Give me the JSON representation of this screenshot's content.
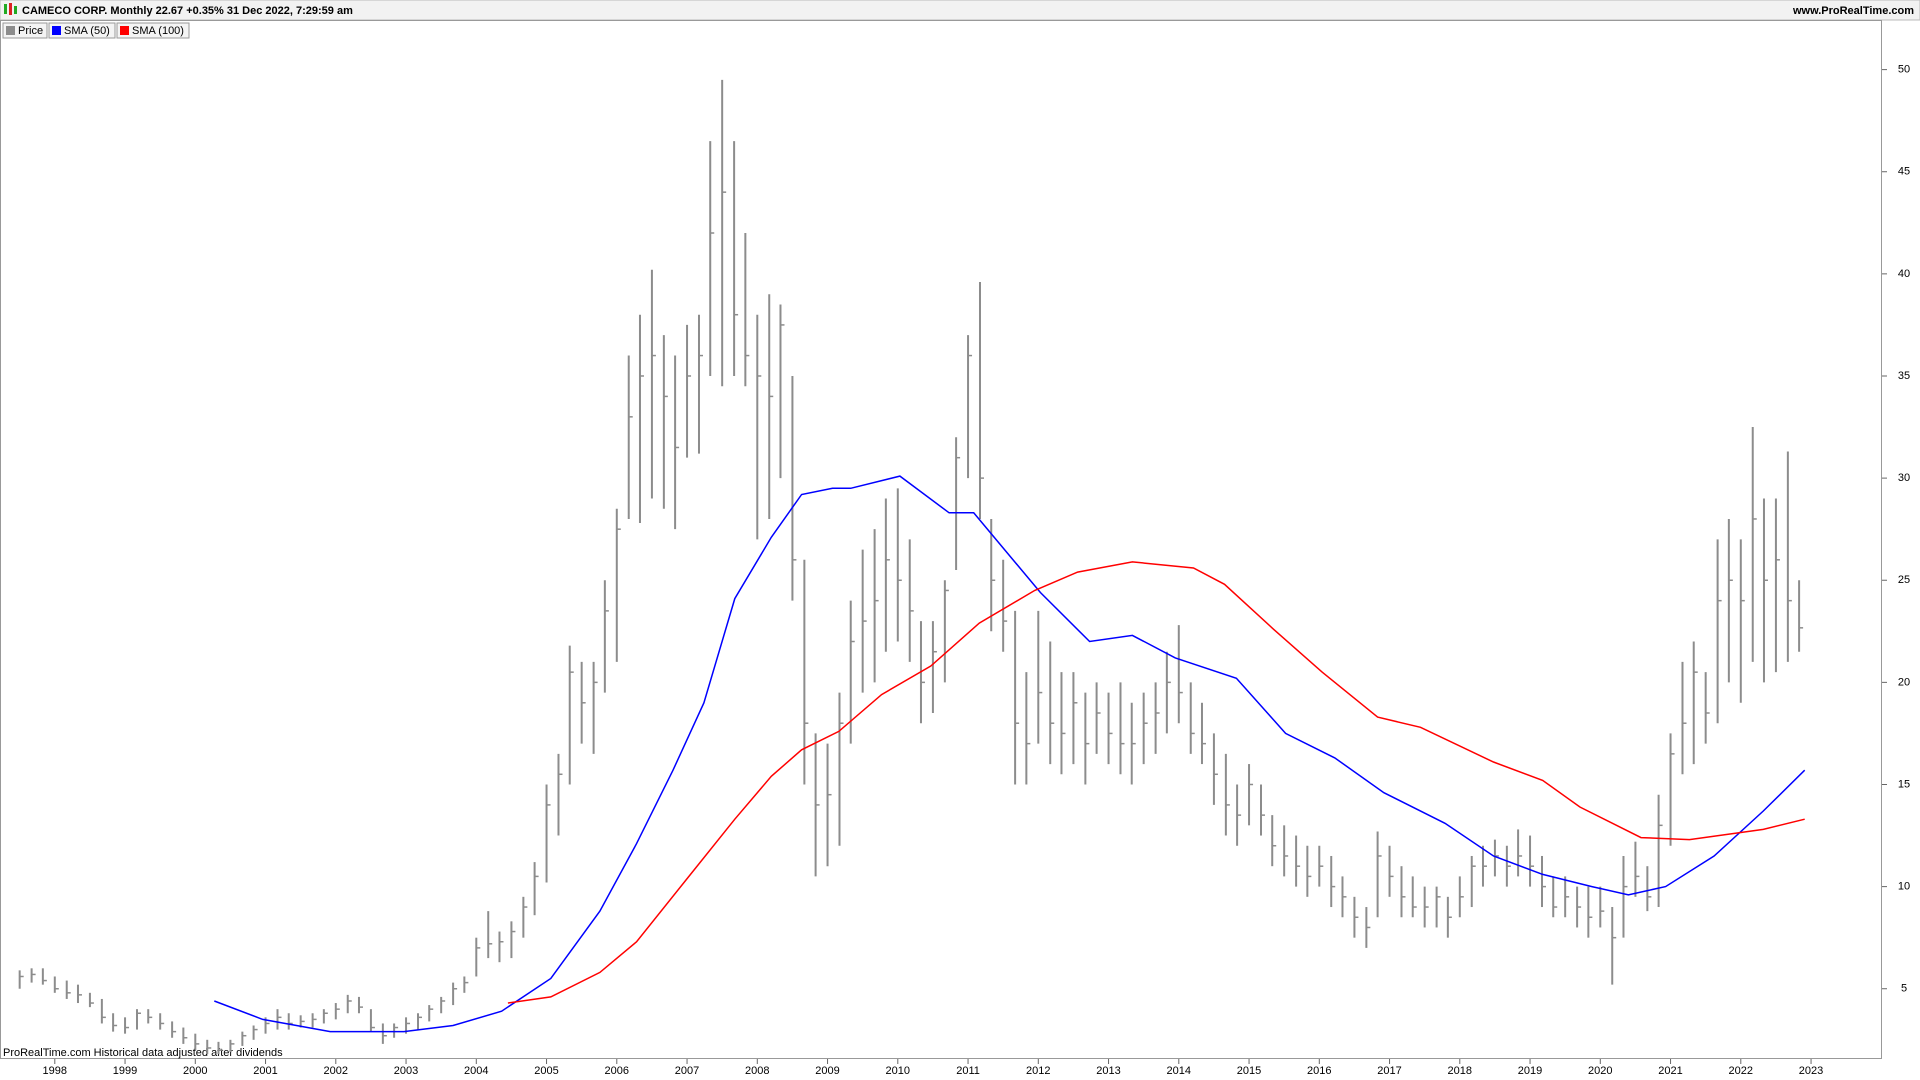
{
  "chart_data": {
    "type": "ohlc",
    "title": "CAMECO CORP. Monthly 22.67 +0.35% 31 Dec 2022, 7:29:59 am",
    "source": "www.ProRealTime.com",
    "footnote": "ProRealTime.com Historical data adjusted after dividends",
    "xlim": [
      1997.22,
      2024.01
    ],
    "xticks": [
      {
        "value": 1998,
        "label": "1998"
      },
      {
        "value": 1999,
        "label": "1999"
      },
      {
        "value": 2000,
        "label": "2000"
      },
      {
        "value": 2001,
        "label": "2001"
      },
      {
        "value": 2002,
        "label": "2002"
      },
      {
        "value": 2003,
        "label": "2003"
      },
      {
        "value": 2004,
        "label": "2004"
      },
      {
        "value": 2005,
        "label": "2005"
      },
      {
        "value": 2006,
        "label": "2006"
      },
      {
        "value": 2007,
        "label": "2007"
      },
      {
        "value": 2008,
        "label": "2008"
      },
      {
        "value": 2009,
        "label": "2009"
      },
      {
        "value": 2010,
        "label": "2010"
      },
      {
        "value": 2011,
        "label": "2011"
      },
      {
        "value": 2012,
        "label": "2012"
      },
      {
        "value": 2013,
        "label": "2013"
      },
      {
        "value": 2014,
        "label": "2014"
      },
      {
        "value": 2015,
        "label": "2015"
      },
      {
        "value": 2016,
        "label": "2016"
      },
      {
        "value": 2017,
        "label": "2017"
      },
      {
        "value": 2018,
        "label": "2018"
      },
      {
        "value": 2019,
        "label": "2019"
      },
      {
        "value": 2020,
        "label": "2020"
      },
      {
        "value": 2021,
        "label": "2021"
      },
      {
        "value": 2022,
        "label": "2022"
      },
      {
        "value": 2023,
        "label": "2023"
      }
    ],
    "ylim": [
      1.56,
      52.38
    ],
    "yticks": [
      5,
      10,
      15,
      20,
      25,
      30,
      35,
      40,
      45,
      50
    ],
    "series": [
      {
        "name": "Price",
        "color": "#8c8c8c",
        "x": [
          1997.5,
          1997.67,
          1997.83,
          1998.0,
          1998.17,
          1998.33,
          1998.5,
          1998.67,
          1998.83,
          1999.0,
          1999.17,
          1999.33,
          1999.5,
          1999.67,
          1999.83,
          2000.0,
          2000.17,
          2000.33,
          2000.5,
          2000.67,
          2000.83,
          2001.0,
          2001.17,
          2001.33,
          2001.5,
          2001.67,
          2001.83,
          2002.0,
          2002.17,
          2002.33,
          2002.5,
          2002.67,
          2002.83,
          2003.0,
          2003.17,
          2003.33,
          2003.5,
          2003.67,
          2003.83,
          2004.0,
          2004.17,
          2004.33,
          2004.5,
          2004.67,
          2004.83,
          2005.0,
          2005.17,
          2005.33,
          2005.5,
          2005.67,
          2005.83,
          2006.0,
          2006.17,
          2006.33,
          2006.5,
          2006.67,
          2006.83,
          2007.0,
          2007.17,
          2007.33,
          2007.5,
          2007.67,
          2007.83,
          2008.0,
          2008.17,
          2008.33,
          2008.5,
          2008.67,
          2008.83,
          2009.0,
          2009.17,
          2009.33,
          2009.5,
          2009.67,
          2009.83,
          2010.0,
          2010.17,
          2010.33,
          2010.5,
          2010.67,
          2010.83,
          2011.0,
          2011.17,
          2011.33,
          2011.5,
          2011.67,
          2011.83,
          2012.0,
          2012.17,
          2012.33,
          2012.5,
          2012.67,
          2012.83,
          2013.0,
          2013.17,
          2013.33,
          2013.5,
          2013.67,
          2013.83,
          2014.0,
          2014.17,
          2014.33,
          2014.5,
          2014.67,
          2014.83,
          2015.0,
          2015.17,
          2015.33,
          2015.5,
          2015.67,
          2015.83,
          2016.0,
          2016.17,
          2016.33,
          2016.5,
          2016.67,
          2016.83,
          2017.0,
          2017.17,
          2017.33,
          2017.5,
          2017.67,
          2017.83,
          2018.0,
          2018.17,
          2018.33,
          2018.5,
          2018.67,
          2018.83,
          2019.0,
          2019.17,
          2019.33,
          2019.5,
          2019.67,
          2019.83,
          2020.0,
          2020.17,
          2020.33,
          2020.5,
          2020.67,
          2020.83,
          2021.0,
          2021.17,
          2021.33,
          2021.5,
          2021.67,
          2021.83,
          2022.0,
          2022.17,
          2022.33,
          2022.5,
          2022.67,
          2022.83
        ],
        "high": [
          5.9,
          6.0,
          6.0,
          5.6,
          5.4,
          5.2,
          4.8,
          4.5,
          3.8,
          3.6,
          4.0,
          4.0,
          3.8,
          3.4,
          3.1,
          2.8,
          2.5,
          2.4,
          2.5,
          2.9,
          3.2,
          3.6,
          4.0,
          3.8,
          3.7,
          3.8,
          4.0,
          4.3,
          4.7,
          4.6,
          4.0,
          3.3,
          3.3,
          3.6,
          3.8,
          4.2,
          4.6,
          5.3,
          5.6,
          7.5,
          8.8,
          7.8,
          8.3,
          9.5,
          11.2,
          15.0,
          16.5,
          21.8,
          21.0,
          21.0,
          25.0,
          28.5,
          36.0,
          38.0,
          40.2,
          37.0,
          36.0,
          37.5,
          38.0,
          46.5,
          49.5,
          46.5,
          42.0,
          38.0,
          39.0,
          38.5,
          35.0,
          26.0,
          17.5,
          17.0,
          19.5,
          24.0,
          26.5,
          27.5,
          29.0,
          29.5,
          27.0,
          23.0,
          23.0,
          25.0,
          32.0,
          37.0,
          39.6,
          28.0,
          26.0,
          23.5,
          20.5,
          23.5,
          22.0,
          20.5,
          20.5,
          19.5,
          20.0,
          19.5,
          20.0,
          19.0,
          19.5,
          20.0,
          21.5,
          22.8,
          20.0,
          19.0,
          17.5,
          16.5,
          15.0,
          16.0,
          15.0,
          13.5,
          13.0,
          12.5,
          12.0,
          12.0,
          11.5,
          10.5,
          9.5,
          9.0,
          12.7,
          12.0,
          11.0,
          10.5,
          10.0,
          10.0,
          9.5,
          10.5,
          11.5,
          12.0,
          12.3,
          12.0,
          12.8,
          12.5,
          11.5,
          10.5,
          10.5,
          10.0,
          10.0,
          10.0,
          9.0,
          11.5,
          12.2,
          11.0,
          14.5,
          17.5,
          21.0,
          22.0,
          20.5,
          27.0,
          28.0,
          27.0,
          32.5,
          29.0,
          29.0,
          31.3,
          25.0
        ],
        "low": [
          5.0,
          5.3,
          5.2,
          4.8,
          4.5,
          4.3,
          4.1,
          3.3,
          2.9,
          2.8,
          3.0,
          3.3,
          3.0,
          2.6,
          2.3,
          2.0,
          1.8,
          1.8,
          1.9,
          2.2,
          2.5,
          2.8,
          3.0,
          3.0,
          3.1,
          3.1,
          3.3,
          3.5,
          3.8,
          3.8,
          2.9,
          2.3,
          2.6,
          2.8,
          3.0,
          3.4,
          3.8,
          4.2,
          4.8,
          5.6,
          6.5,
          6.3,
          6.5,
          7.5,
          8.6,
          10.2,
          12.5,
          15.0,
          17.0,
          16.5,
          19.5,
          21.0,
          28.0,
          27.8,
          29.0,
          28.5,
          27.5,
          31.0,
          31.2,
          35.0,
          34.5,
          35.0,
          34.5,
          27.0,
          28.0,
          30.0,
          24.0,
          15.0,
          10.5,
          11.0,
          12.0,
          17.0,
          19.5,
          20.0,
          21.5,
          22.0,
          21.0,
          18.0,
          18.5,
          20.0,
          25.5,
          30.0,
          28.0,
          22.5,
          21.5,
          15.0,
          15.0,
          17.0,
          16.0,
          15.5,
          16.0,
          15.0,
          16.5,
          16.0,
          15.5,
          15.0,
          16.0,
          16.5,
          17.5,
          18.0,
          16.5,
          16.0,
          14.0,
          12.5,
          12.0,
          13.0,
          12.5,
          11.0,
          10.5,
          10.0,
          9.5,
          10.0,
          9.0,
          8.5,
          7.5,
          7.0,
          8.5,
          9.5,
          8.5,
          8.5,
          8.0,
          8.0,
          7.5,
          8.5,
          9.0,
          10.0,
          10.5,
          10.0,
          10.5,
          10.0,
          9.0,
          8.5,
          8.5,
          8.0,
          7.5,
          8.0,
          5.2,
          7.5,
          9.5,
          8.8,
          9.0,
          12.0,
          15.5,
          16.0,
          17.0,
          18.0,
          20.0,
          19.0,
          21.0,
          20.0,
          20.5,
          21.0,
          21.5
        ],
        "close": [
          5.6,
          5.7,
          5.4,
          5.0,
          4.8,
          4.7,
          4.3,
          3.6,
          3.2,
          3.1,
          3.8,
          3.6,
          3.3,
          2.9,
          2.6,
          2.3,
          2.1,
          2.0,
          2.3,
          2.7,
          3.0,
          3.3,
          3.6,
          3.3,
          3.4,
          3.5,
          3.8,
          4.0,
          4.4,
          4.1,
          3.1,
          2.7,
          3.1,
          3.3,
          3.6,
          4.0,
          4.4,
          5.0,
          5.3,
          7.0,
          7.2,
          7.3,
          7.8,
          9.0,
          10.5,
          14.0,
          15.5,
          20.5,
          19.0,
          20.0,
          23.5,
          27.5,
          33.0,
          35.0,
          36.0,
          34.0,
          31.5,
          35.0,
          36.0,
          42.0,
          44.0,
          38.0,
          36.0,
          35.0,
          34.0,
          37.5,
          26.0,
          18.0,
          14.0,
          14.5,
          18.0,
          22.0,
          23.0,
          24.0,
          26.0,
          25.0,
          23.5,
          20.0,
          21.5,
          24.5,
          31.0,
          36.0,
          30.0,
          25.0,
          23.0,
          18.0,
          17.0,
          19.5,
          18.0,
          17.5,
          19.0,
          17.0,
          18.5,
          17.5,
          17.0,
          17.0,
          18.0,
          18.5,
          20.0,
          19.5,
          17.5,
          17.0,
          15.5,
          14.0,
          13.5,
          15.0,
          13.5,
          12.0,
          11.5,
          11.0,
          10.5,
          11.0,
          10.0,
          9.5,
          8.5,
          8.0,
          11.5,
          10.5,
          9.5,
          9.0,
          9.0,
          9.5,
          8.5,
          9.5,
          11.0,
          11.0,
          11.5,
          11.0,
          11.5,
          11.0,
          10.0,
          9.0,
          9.5,
          9.0,
          8.5,
          8.8,
          7.5,
          10.0,
          10.5,
          9.5,
          13.0,
          16.5,
          18.0,
          20.5,
          18.5,
          24.0,
          25.0,
          24.0,
          28.0,
          25.0,
          26.0,
          24.0,
          22.67
        ]
      },
      {
        "name": "SMA (50)",
        "color": "#0000ff",
        "x": [
          2000.27,
          2000.96,
          2001.92,
          2002.97,
          2003.67,
          2004.36,
          2005.06,
          2005.76,
          2006.28,
          2006.8,
          2007.24,
          2007.68,
          2008.2,
          2008.63,
          2009.07,
          2009.33,
          2010.03,
          2010.73,
          2011.08,
          2012.03,
          2012.73,
          2013.34,
          2013.95,
          2014.82,
          2015.52,
          2016.22,
          2016.92,
          2017.79,
          2018.48,
          2019.18,
          2019.88,
          2020.4,
          2020.93,
          2021.62,
          2022.32,
          2022.91
        ],
        "values": [
          4.4,
          3.5,
          2.9,
          2.9,
          3.2,
          3.9,
          5.5,
          8.8,
          12.1,
          15.7,
          19.0,
          24.1,
          27.1,
          29.2,
          29.5,
          29.5,
          30.1,
          28.3,
          28.3,
          24.4,
          22.0,
          22.3,
          21.2,
          20.2,
          17.5,
          16.3,
          14.6,
          13.1,
          11.5,
          10.6,
          10.0,
          9.6,
          10.0,
          11.5,
          13.7,
          15.7
        ]
      },
      {
        "name": "SMA (100)",
        "color": "#ff0000",
        "x": [
          2004.45,
          2005.06,
          2005.76,
          2006.28,
          2006.98,
          2007.68,
          2008.2,
          2008.63,
          2009.16,
          2009.77,
          2010.47,
          2011.16,
          2011.95,
          2012.56,
          2013.34,
          2014.21,
          2014.65,
          2015.35,
          2016.04,
          2016.83,
          2017.44,
          2018.48,
          2019.18,
          2019.71,
          2020.58,
          2021.27,
          2022.32,
          2022.91
        ],
        "values": [
          4.3,
          4.6,
          5.8,
          7.3,
          10.3,
          13.3,
          15.4,
          16.7,
          17.6,
          19.4,
          20.8,
          22.9,
          24.5,
          25.4,
          25.9,
          25.6,
          24.8,
          22.6,
          20.5,
          18.3,
          17.8,
          16.1,
          15.2,
          13.9,
          12.4,
          12.3,
          12.8,
          13.3
        ]
      }
    ]
  }
}
